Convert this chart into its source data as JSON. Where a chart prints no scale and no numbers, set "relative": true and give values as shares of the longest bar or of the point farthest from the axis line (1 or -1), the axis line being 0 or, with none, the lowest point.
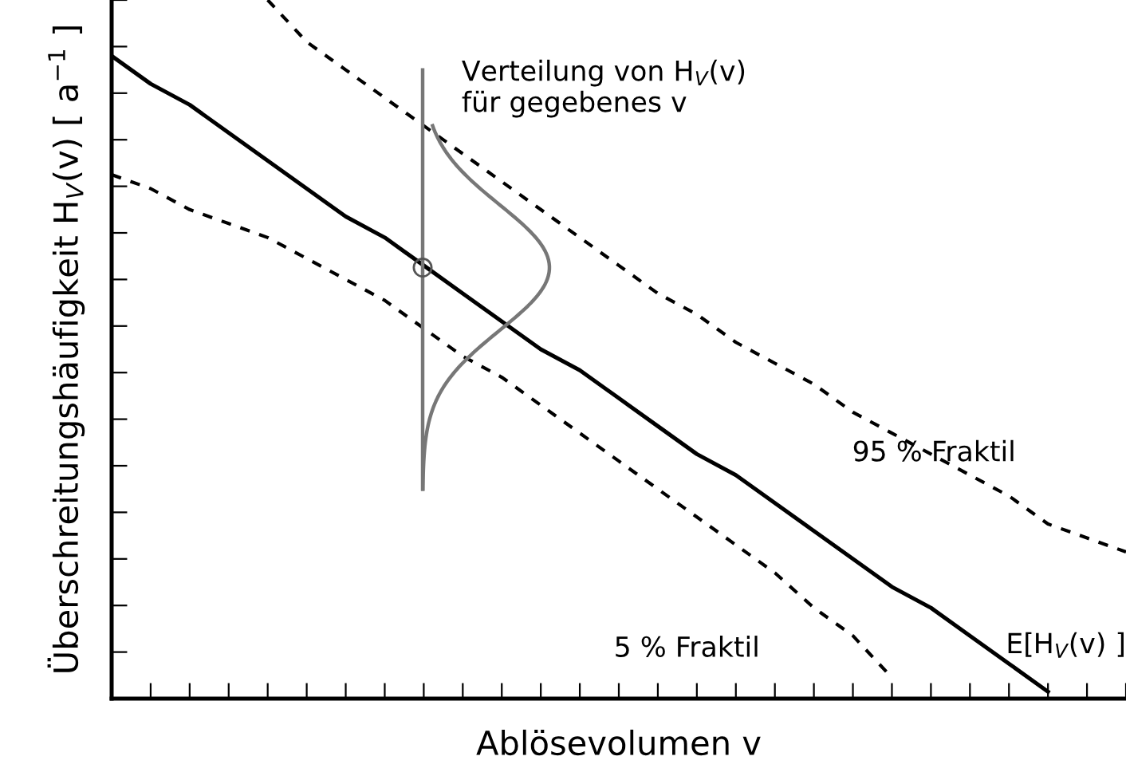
{
  "chart_data": {
    "type": "line",
    "relative": true,
    "tick_labels": false,
    "xlabel": "Ablösevolumen v",
    "ylabel": "Überschreitungshäufigkeit H$_{V}$(v) [ a$^{−1}$ ]",
    "annotations": [
      "Verteilung von H$_{V}$(v)\nfür gegebenes v"
    ],
    "categories": [
      null,
      null,
      null,
      null,
      null,
      null,
      null,
      null,
      null,
      null,
      null,
      null,
      null,
      null,
      null,
      null,
      null,
      null,
      null,
      null,
      null,
      null,
      null,
      null,
      null,
      null,
      null
    ],
    "series": [
      {
        "name": "E[H$_{V}$(v) ]",
        "color": "#000000",
        "line_style": "solid",
        "values": [
          0.92,
          0.88,
          0.85,
          0.81,
          0.77,
          0.73,
          0.69,
          0.66,
          0.62,
          0.58,
          0.54,
          0.5,
          0.47,
          0.43,
          0.39,
          0.35,
          0.32,
          0.28,
          0.24,
          0.2,
          0.16,
          0.13,
          0.09,
          0.05,
          0.01,
          null,
          null
        ]
      },
      {
        "name": "95 % Fraktil",
        "color": "#000000",
        "line_style": "dashed",
        "values": [
          null,
          null,
          null,
          null,
          1.0,
          0.94,
          0.9,
          0.86,
          0.82,
          0.78,
          0.74,
          0.7,
          0.66,
          0.62,
          0.58,
          0.55,
          0.51,
          0.48,
          0.45,
          0.41,
          0.38,
          0.35,
          0.32,
          0.29,
          0.25,
          0.23,
          0.21
        ]
      },
      {
        "name": "5 % Fraktil",
        "color": "#000000",
        "line_style": "dashed",
        "values": [
          0.75,
          0.73,
          0.7,
          0.68,
          0.66,
          0.63,
          0.6,
          0.57,
          0.53,
          0.49,
          0.46,
          0.42,
          0.38,
          0.34,
          0.3,
          0.26,
          0.22,
          0.18,
          0.13,
          0.09,
          0.03,
          null,
          null,
          null,
          null,
          null,
          null
        ]
      }
    ]
  }
}
